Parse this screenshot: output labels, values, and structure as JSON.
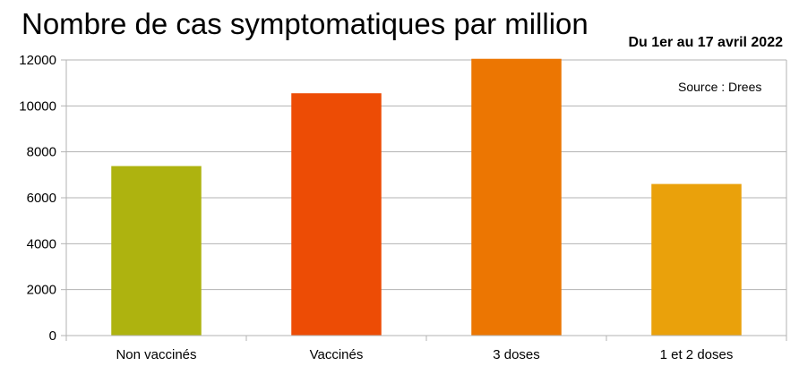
{
  "chart_data": {
    "type": "bar",
    "title": "Nombre de cas symptomatiques par million",
    "subtitle": "Du 1er au 17 avril 2022",
    "annotation": "Source : Drees",
    "categories": [
      "Non vaccinés",
      "Vaccinés",
      "3 doses",
      "1 et 2 doses"
    ],
    "values": [
      7380,
      10550,
      12050,
      6600
    ],
    "colors": [
      "#aeb30f",
      "#ed4c05",
      "#ec7602",
      "#eaa10b"
    ],
    "ylim": [
      0,
      12000
    ],
    "yticks": [
      0,
      2000,
      4000,
      6000,
      8000,
      10000,
      12000
    ],
    "grid": true,
    "legend": "none"
  }
}
